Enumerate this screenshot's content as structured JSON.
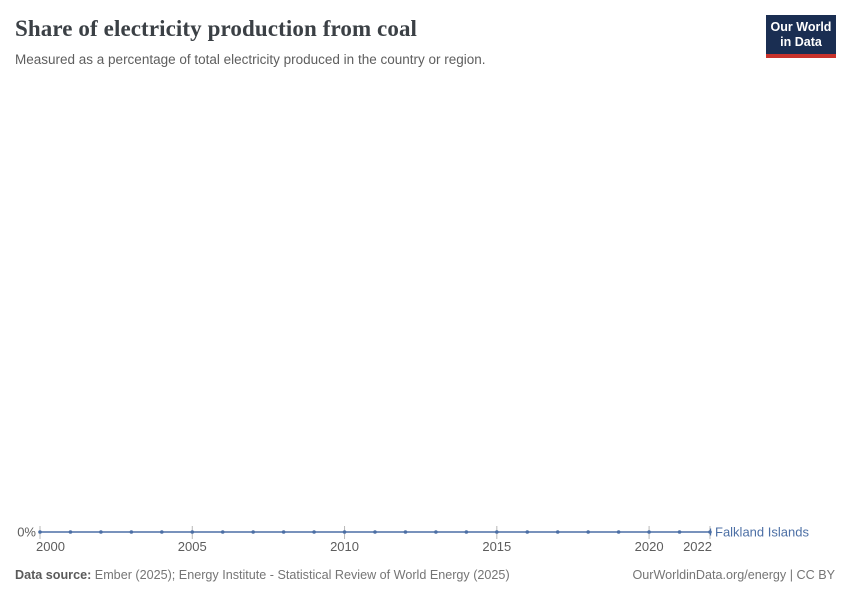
{
  "header": {
    "title": "Share of electricity production from coal",
    "subtitle": "Measured as a percentage of total electricity produced in the country or region."
  },
  "logo": {
    "line1": "Our World",
    "line2": "in Data",
    "bg_color": "#1a2e52",
    "accent_color": "#c8322b"
  },
  "chart_data": {
    "type": "line",
    "title": "Share of electricity production from coal",
    "xlabel": "",
    "ylabel": "",
    "x": [
      2000,
      2001,
      2002,
      2003,
      2004,
      2005,
      2006,
      2007,
      2008,
      2009,
      2010,
      2011,
      2012,
      2013,
      2014,
      2015,
      2016,
      2017,
      2018,
      2019,
      2020,
      2021,
      2022
    ],
    "series": [
      {
        "name": "Falkland Islands",
        "color": "#4c6fa5",
        "values": [
          0,
          0,
          0,
          0,
          0,
          0,
          0,
          0,
          0,
          0,
          0,
          0,
          0,
          0,
          0,
          0,
          0,
          0,
          0,
          0,
          0,
          0,
          0
        ]
      }
    ],
    "xticks": [
      2000,
      2005,
      2010,
      2015,
      2020,
      2022
    ],
    "yticks": [
      {
        "value": 0,
        "label": "0%"
      }
    ],
    "xlim": [
      2000,
      2022
    ],
    "grid": false,
    "legend_position": "right-of-line-end",
    "marker": "dot"
  },
  "colors": {
    "axis_text": "#5d5d5d",
    "tick_mark": "#b8b8b8",
    "series_blue": "#4c6fa5"
  },
  "footer": {
    "data_source_label": "Data source:",
    "data_source_text": " Ember (2025); Energy Institute - Statistical Review of World Energy (2025)",
    "credit": "OurWorldinData.org/energy | CC BY"
  }
}
